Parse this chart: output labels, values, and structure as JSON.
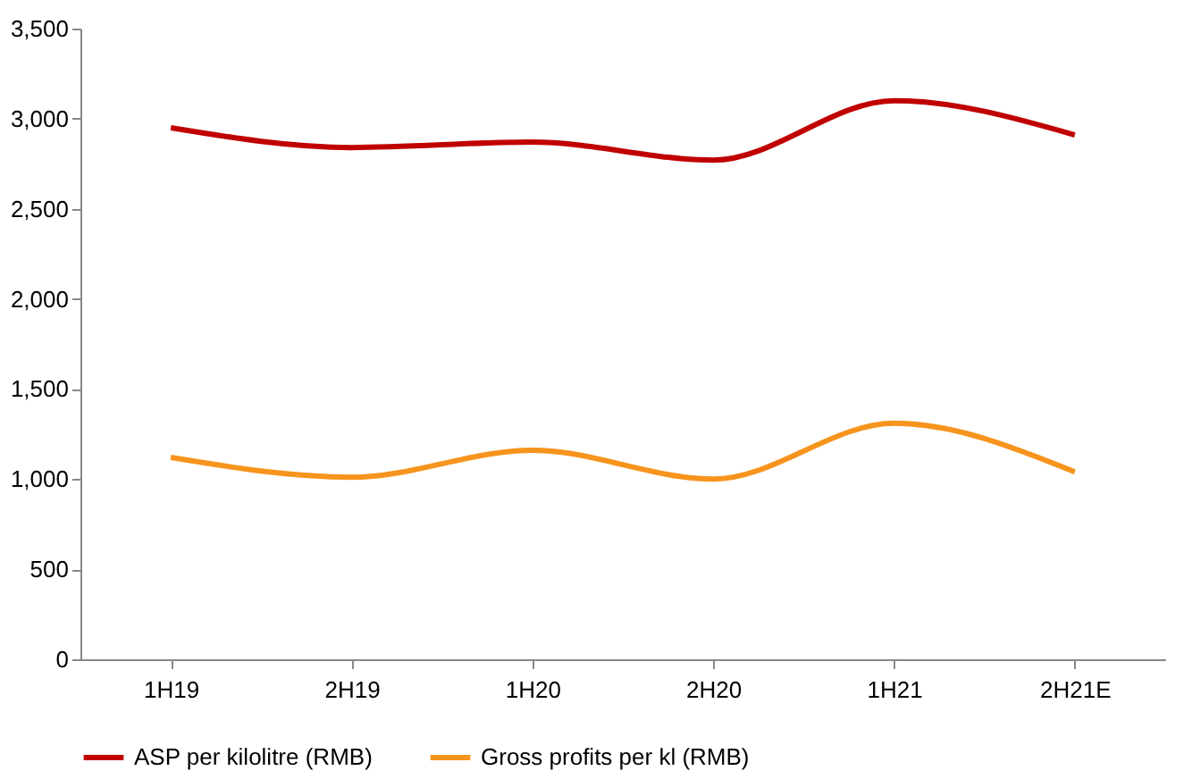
{
  "chart_data": {
    "type": "line",
    "categories": [
      "1H19",
      "2H19",
      "1H20",
      "2H20",
      "1H21",
      "2H21E"
    ],
    "series": [
      {
        "name": "ASP per kilolitre (RMB)",
        "color": "#c00000",
        "values": [
          2950,
          2840,
          2870,
          2770,
          3100,
          2910
        ]
      },
      {
        "name": "Gross profits per kl (RMB)",
        "color": "#f7941d",
        "values": [
          1120,
          1010,
          1160,
          1000,
          1310,
          1040
        ]
      }
    ],
    "ylim": [
      0,
      3500
    ],
    "yticks": [
      0,
      500,
      {
        "value": 1000,
        "label": "1,000"
      },
      {
        "value": 1500,
        "label": "1,500"
      },
      {
        "value": 2000,
        "label": "2,000"
      },
      {
        "value": 2500,
        "label": "2,500"
      },
      {
        "value": 3000,
        "label": "3,000"
      },
      {
        "value": 3500,
        "label": "3,500"
      }
    ],
    "grid": false,
    "legend": "bottom",
    "marker": "none",
    "line_style": "solid"
  }
}
